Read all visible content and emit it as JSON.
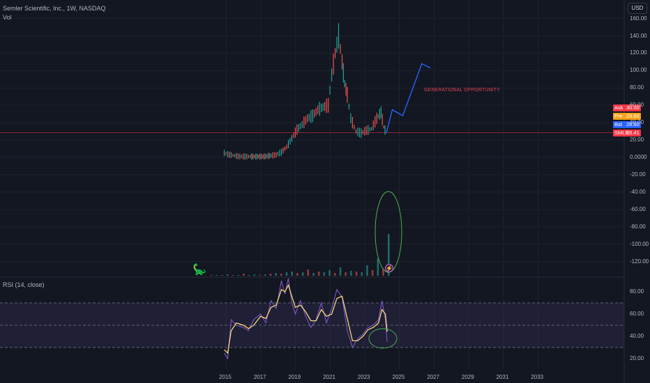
{
  "header": {
    "title": "Semler Scientific, Inc., 1W, NASDAQ",
    "volume_label": "Vol",
    "rsi_label": "RSI (14, close)",
    "currency_button": "USD"
  },
  "price_tags": [
    {
      "name": "Ask",
      "value": "30.00",
      "color": "#f23645"
    },
    {
      "name": "Pre",
      "value": "29.60",
      "color": "#f7a21b"
    },
    {
      "name": "Bid",
      "value": "28.60",
      "color": "#2962ff"
    },
    {
      "name": "SMLR",
      "value": "28.41",
      "color": "#f23645"
    }
  ],
  "annotation": {
    "text": "GENERATIONAL OPPORTUNITY",
    "color": "#e0454f"
  },
  "icons": {
    "logo": "dinosaur-icon",
    "event": "lightning-icon"
  },
  "chart_data": [
    {
      "type": "line",
      "title": "Semler Scientific, Inc., 1W, NASDAQ",
      "xlim": [
        2014,
        2034
      ],
      "ylim": [
        -130,
        165
      ],
      "grid": true,
      "y_ticks": [
        "160.00",
        "140.00",
        "120.00",
        "100.00",
        "80.00",
        "60.00",
        "40.00",
        "20.00",
        "0.0000",
        "-20.00",
        "-40.00",
        "-60.00",
        "-80.00",
        "-100.00",
        "-120.00"
      ],
      "x_ticks": [
        "2015",
        "2017",
        "2019",
        "2021",
        "2023",
        "2025",
        "2027",
        "2029",
        "2031",
        "2033"
      ],
      "x": [
        2014.9,
        2015.2,
        2015.5,
        2015.8,
        2016.1,
        2016.4,
        2016.8,
        2017.2,
        2017.6,
        2017.9,
        2018.2,
        2018.5,
        2018.8,
        2019.1,
        2019.4,
        2019.7,
        2020.0,
        2020.3,
        2020.6,
        2020.9,
        2021.1,
        2021.3,
        2021.5,
        2021.7,
        2021.85,
        2022.0,
        2022.2,
        2022.5,
        2022.8,
        2023.1,
        2023.4,
        2023.7,
        2023.95,
        2024.1,
        2024.25
      ],
      "series": [
        {
          "name": "SMLR",
          "color": "#26a69a",
          "values": [
            5,
            3,
            2,
            1,
            1,
            1,
            1,
            1,
            2,
            3,
            6,
            12,
            22,
            32,
            38,
            45,
            48,
            55,
            58,
            60,
            95,
            120,
            140,
            110,
            85,
            72,
            45,
            30,
            28,
            31,
            33,
            45,
            52,
            35,
            28
          ]
        }
      ],
      "horizontal_line": 28.41,
      "projection": {
        "x": [
          2024.25,
          2024.6,
          2025.2,
          2026.3,
          2026.8
        ],
        "values": [
          28,
          55,
          48,
          108,
          103
        ],
        "color": "#2962ff"
      }
    },
    {
      "type": "bar",
      "title": "Vol",
      "series": [
        {
          "name": "Vol",
          "values": [
            1,
            1,
            1,
            2,
            1,
            1,
            3,
            1,
            2,
            1,
            2,
            3,
            4,
            3,
            5,
            6,
            4,
            5,
            9,
            4,
            6,
            5,
            8,
            4,
            12,
            5,
            7,
            6,
            5,
            15,
            8,
            25,
            9,
            60
          ]
        }
      ]
    },
    {
      "type": "line",
      "title": "RSI (14, close)",
      "ylim": [
        15,
        95
      ],
      "y_ticks": [
        "80.00",
        "60.00",
        "40.00",
        "20.00"
      ],
      "bands": [
        30,
        50,
        70
      ],
      "x": [
        2014.9,
        2015.1,
        2015.3,
        2015.6,
        2016.0,
        2016.3,
        2016.6,
        2017.0,
        2017.3,
        2017.6,
        2017.9,
        2018.2,
        2018.4,
        2018.6,
        2018.8,
        2019.0,
        2019.3,
        2019.6,
        2019.9,
        2020.2,
        2020.5,
        2020.8,
        2021.1,
        2021.4,
        2021.7,
        2022.0,
        2022.3,
        2022.6,
        2022.9,
        2023.2,
        2023.5,
        2023.8,
        2024.0,
        2024.2,
        2024.3
      ],
      "series": [
        {
          "name": "RSI",
          "color": "#7e57c2",
          "values": [
            25,
            20,
            55,
            50,
            48,
            45,
            55,
            60,
            52,
            72,
            65,
            90,
            78,
            92,
            70,
            60,
            72,
            58,
            48,
            55,
            70,
            52,
            65,
            82,
            75,
            45,
            30,
            38,
            42,
            48,
            50,
            55,
            72,
            55,
            35
          ]
        },
        {
          "name": "RSI-based MA",
          "color": "#f5d77a",
          "values": [
            28,
            25,
            45,
            52,
            50,
            47,
            50,
            58,
            56,
            66,
            68,
            82,
            80,
            86,
            76,
            66,
            68,
            62,
            54,
            54,
            64,
            58,
            60,
            74,
            76,
            56,
            36,
            36,
            40,
            46,
            48,
            52,
            64,
            60,
            44
          ]
        }
      ]
    }
  ]
}
